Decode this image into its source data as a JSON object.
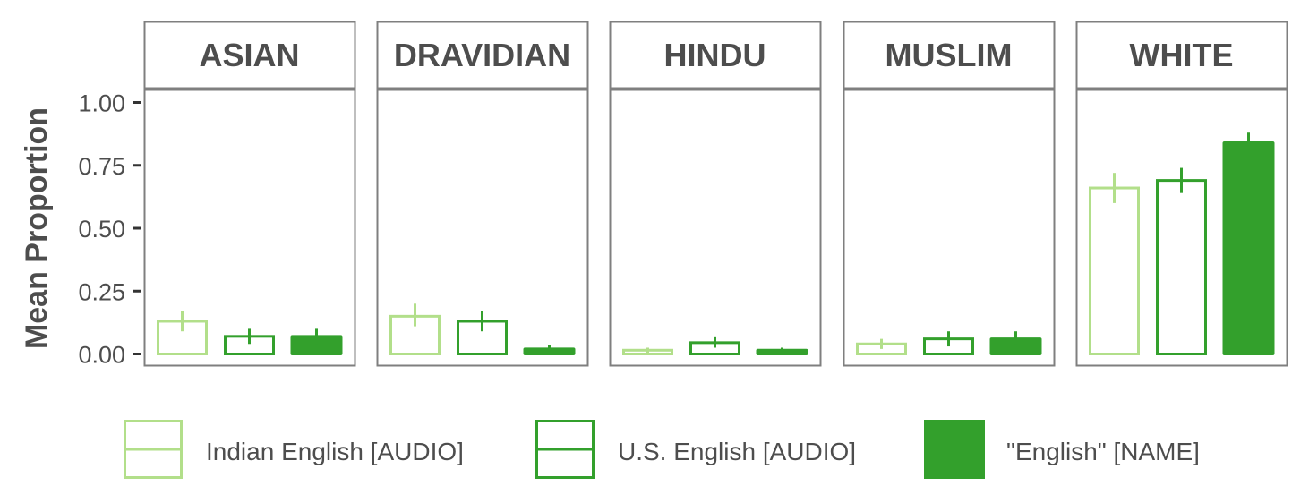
{
  "chart_data": {
    "type": "bar",
    "facets": [
      "ASIAN",
      "DRAVIDIAN",
      "HINDU",
      "MUSLIM",
      "WHITE"
    ],
    "ylabel": "Mean Proportion",
    "xlabel": "",
    "ylim": [
      0,
      1
    ],
    "yticks": [
      "0.00",
      "0.25",
      "0.50",
      "0.75",
      "1.00"
    ],
    "legend_position": "bottom",
    "series": [
      {
        "name": "Indian English [AUDIO]",
        "color": "#b2df8a",
        "fill": "none",
        "values": [
          0.13,
          0.15,
          0.015,
          0.04,
          0.66
        ],
        "error_low": [
          0.09,
          0.11,
          0.005,
          0.02,
          0.6
        ],
        "error_high": [
          0.17,
          0.2,
          0.025,
          0.06,
          0.72
        ]
      },
      {
        "name": "U.S. English [AUDIO]",
        "color": "#33a02c",
        "fill": "none",
        "values": [
          0.07,
          0.13,
          0.045,
          0.06,
          0.69
        ],
        "error_low": [
          0.04,
          0.09,
          0.025,
          0.03,
          0.64
        ],
        "error_high": [
          0.1,
          0.17,
          0.07,
          0.09,
          0.74
        ]
      },
      {
        "name": "\"English\" [NAME]",
        "color": "#33a02c",
        "fill": "#33a02c",
        "values": [
          0.07,
          0.02,
          0.015,
          0.06,
          0.84
        ],
        "error_low": [
          0.04,
          0.01,
          0.005,
          0.04,
          0.81
        ],
        "error_high": [
          0.1,
          0.035,
          0.025,
          0.09,
          0.88
        ]
      }
    ]
  }
}
